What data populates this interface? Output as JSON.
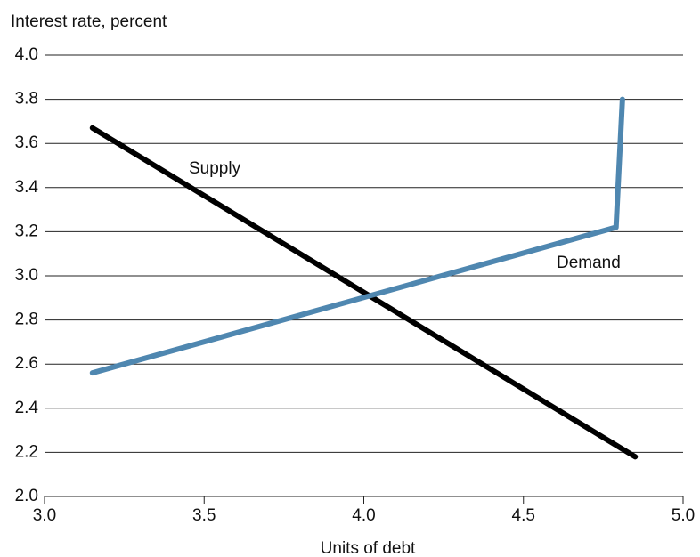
{
  "chart_data": {
    "type": "line",
    "y_label": "Interest rate, percent",
    "x_label": "Units of debt",
    "xlim": [
      3.0,
      5.0
    ],
    "xticks": [
      {
        "value": 3,
        "label": "3.0"
      },
      3.5,
      {
        "value": 4,
        "label": "4.0"
      },
      4.5,
      {
        "value": 5,
        "label": "5.0"
      }
    ],
    "ylim": [
      2.0,
      4.0
    ],
    "yticks": [
      {
        "value": 2,
        "label": "2.0"
      },
      2.2,
      2.4,
      2.6,
      2.8,
      {
        "value": 3,
        "label": "3.0"
      },
      3.2,
      3.4,
      3.6,
      3.8,
      {
        "value": 4,
        "label": "4.0"
      }
    ],
    "grid": true,
    "series": [
      {
        "name": "Supply",
        "color": "#000000",
        "x": [
          3.15,
          4.85
        ],
        "values": [
          3.67,
          2.18
        ]
      },
      {
        "name": "Demand",
        "color": "#4f87b0",
        "x": [
          3.15,
          4.79,
          4.81
        ],
        "values": [
          2.56,
          3.22,
          3.8
        ]
      }
    ]
  }
}
